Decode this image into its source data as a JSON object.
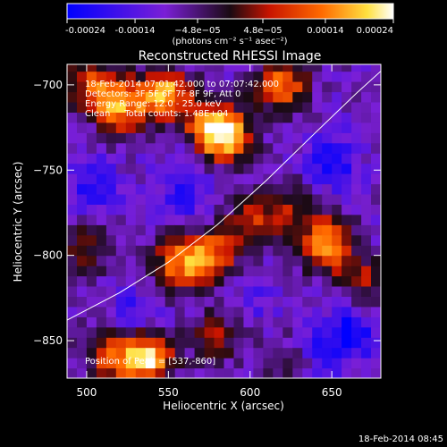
{
  "chart_data": {
    "type": "heatmap",
    "title": "Reconstructed RHESSI Image",
    "xlabel": "Heliocentric X (arcsec)",
    "ylabel": "Heliocentric Y (arcsec)",
    "x_range": [
      488,
      680
    ],
    "y_range": [
      -872,
      -688
    ],
    "x_ticks": [
      500,
      550,
      600,
      650
    ],
    "y_ticks": [
      -850,
      -800,
      -750,
      -700
    ],
    "colorbar": {
      "range": [
        -0.00024,
        0.00024
      ],
      "ticks": [
        -0.00024,
        -0.00014,
        -4.8e-05,
        4.8e-05,
        0.00014,
        0.00024
      ],
      "tick_labels": [
        "-0.00024",
        "-0.00014",
        "−4.8e−05",
        "4.8e−05",
        "0.00014",
        "0.00024"
      ],
      "units_label": "(photons cm⁻² s⁻¹ asec⁻²)",
      "colors": [
        "#0000ff",
        "#7a1fd6",
        "#1a0a12",
        "#c81400",
        "#ff6a00",
        "#ffe040",
        "#ffffff"
      ]
    },
    "annotations": [
      "18-Feb-2014 07:01:42.000 to 07:07:42.000",
      "Detectors: 3F 5F 6F 7F 8F 9F, Att 0",
      "Energy Range: 12.0 - 25.0 keV",
      "Clean     Total counts: 1.48E+04"
    ],
    "peak_label": "Position of Peak = [537,-860]",
    "limb_curve": {
      "x": [
        488,
        520,
        550,
        580,
        610,
        640,
        665,
        680
      ],
      "y": [
        -838,
        -822,
        -804,
        -782,
        -756,
        -728,
        -705,
        -692
      ]
    },
    "bright_regions": [
      {
        "x": 502,
        "y": -697,
        "intensity": 0.00011
      },
      {
        "x": 520,
        "y": -712,
        "intensity": 0.00019
      },
      {
        "x": 548,
        "y": -706,
        "intensity": 0.00021
      },
      {
        "x": 575,
        "y": -725,
        "intensity": 0.00014
      },
      {
        "x": 586,
        "y": -729,
        "intensity": 0.00018
      },
      {
        "x": 620,
        "y": -700,
        "intensity": 0.00016
      },
      {
        "x": 556,
        "y": -805,
        "intensity": 0.00014
      },
      {
        "x": 575,
        "y": -800,
        "intensity": 0.00016
      },
      {
        "x": 600,
        "y": -781,
        "intensity": 8e-05
      },
      {
        "x": 622,
        "y": -770,
        "intensity": 6e-05
      },
      {
        "x": 646,
        "y": -793,
        "intensity": 0.00021
      },
      {
        "x": 500,
        "y": -795,
        "intensity": 6e-05
      },
      {
        "x": 537,
        "y": -860,
        "intensity": 0.00024
      },
      {
        "x": 515,
        "y": -858,
        "intensity": 0.00012
      },
      {
        "x": 580,
        "y": -848,
        "intensity": 6e-05
      },
      {
        "x": 628,
        "y": -862,
        "intensity": 5e-05
      },
      {
        "x": 670,
        "y": -815,
        "intensity": 7e-05
      }
    ],
    "dim_regions": [
      {
        "x": 505,
        "y": -760,
        "intensity": -0.0002
      },
      {
        "x": 560,
        "y": -765,
        "intensity": -0.00018
      },
      {
        "x": 650,
        "y": -745,
        "intensity": -0.00022
      },
      {
        "x": 662,
        "y": -845,
        "intensity": -0.00024
      },
      {
        "x": 640,
        "y": -858,
        "intensity": -0.0002
      },
      {
        "x": 530,
        "y": -835,
        "intensity": -0.00018
      },
      {
        "x": 555,
        "y": -740,
        "intensity": -0.00012
      },
      {
        "x": 605,
        "y": -825,
        "intensity": -0.00014
      }
    ]
  },
  "footer_timestamp": "18-Feb-2014 08:45"
}
